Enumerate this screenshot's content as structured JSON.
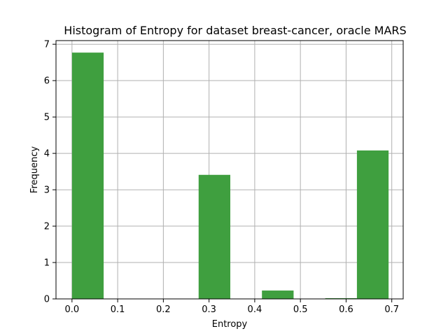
{
  "chart_data": {
    "type": "bar",
    "title": "Histogram of Entropy for dataset breast-cancer, oracle MARS",
    "xlabel": "Entropy",
    "ylabel": "Frequency",
    "xlim": [
      -0.035,
      0.725
    ],
    "ylim": [
      0,
      7.1
    ],
    "xticks": [
      0.0,
      0.1,
      0.2,
      0.3,
      0.4,
      0.5,
      0.6,
      0.7
    ],
    "xtick_labels": [
      "0.0",
      "0.1",
      "0.2",
      "0.3",
      "0.4",
      "0.5",
      "0.6",
      "0.7"
    ],
    "yticks": [
      0,
      1,
      2,
      3,
      4,
      5,
      6,
      7
    ],
    "ytick_labels": [
      "0",
      "1",
      "2",
      "3",
      "4",
      "5",
      "6",
      "7"
    ],
    "grid": true,
    "color": "#3f9f3f",
    "bins": [
      {
        "x0": 0.0,
        "x1": 0.0693,
        "value": 6.77
      },
      {
        "x0": 0.0693,
        "x1": 0.1386,
        "value": 0
      },
      {
        "x0": 0.1386,
        "x1": 0.2079,
        "value": 0
      },
      {
        "x0": 0.2079,
        "x1": 0.2772,
        "value": 0
      },
      {
        "x0": 0.2772,
        "x1": 0.3465,
        "value": 3.41
      },
      {
        "x0": 0.3465,
        "x1": 0.4158,
        "value": 0
      },
      {
        "x0": 0.4158,
        "x1": 0.4851,
        "value": 0.23
      },
      {
        "x0": 0.4851,
        "x1": 0.5544,
        "value": 0
      },
      {
        "x0": 0.5544,
        "x1": 0.6237,
        "value": 0.02
      },
      {
        "x0": 0.6237,
        "x1": 0.693,
        "value": 4.08
      }
    ]
  }
}
